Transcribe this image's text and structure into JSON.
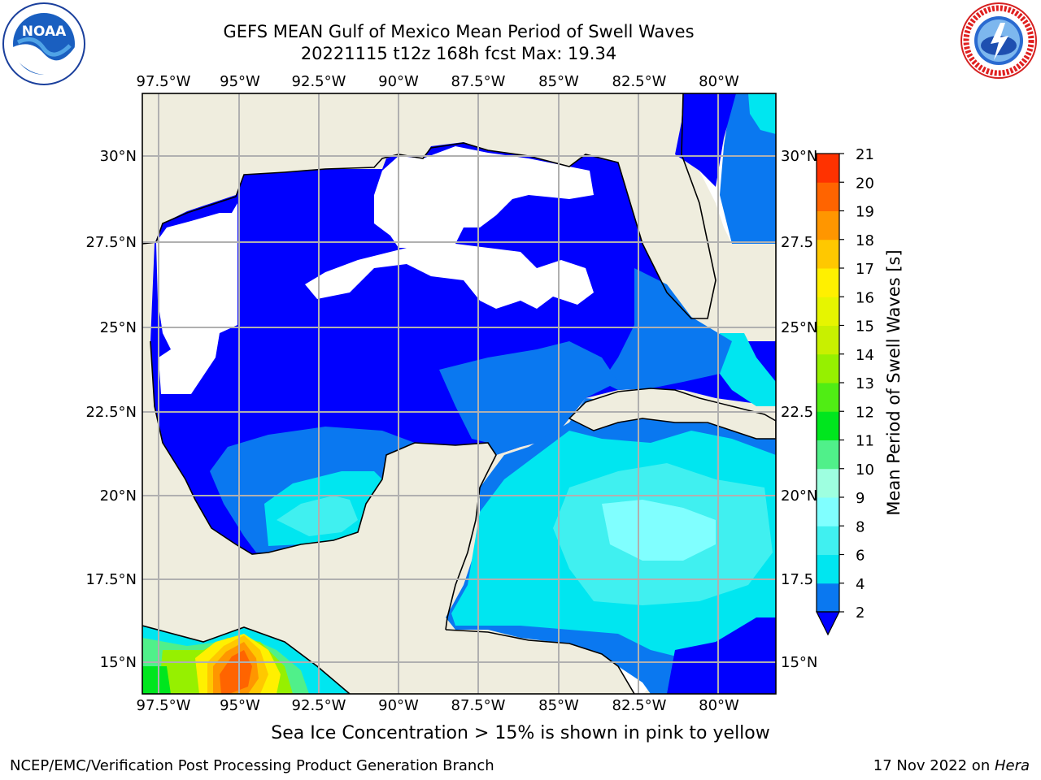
{
  "title_line1": "GEFS MEAN Gulf of Mexico Mean Period of Swell Waves",
  "title_line2": "20221115 t12z 168h fcst   Max: 19.34",
  "lon_labels": [
    "97.5°W",
    "95°W",
    "92.5°W",
    "90°W",
    "87.5°W",
    "85°W",
    "82.5°W",
    "80°W"
  ],
  "lat_labels_left": [
    "30°N",
    "27.5°N",
    "25°N",
    "22.5°N",
    "20°N",
    "17.5°N",
    "15°N"
  ],
  "lat_labels_right": [
    "30°N",
    "27.5",
    "25°N",
    "22.5",
    "20°N",
    "17.5",
    "15°N"
  ],
  "colorbar": {
    "label": "Mean Period of Swell Waves [s]",
    "ticks": [
      "2",
      "4",
      "6",
      "8",
      "9",
      "10",
      "11",
      "12",
      "13",
      "14",
      "15",
      "16",
      "17",
      "18",
      "19",
      "20",
      "21"
    ],
    "colors": [
      "#0a78f0",
      "#00e6f0",
      "#40f0f0",
      "#80ffff",
      "#9effe0",
      "#50f08a",
      "#00e61e",
      "#50ed14",
      "#96f000",
      "#c8f000",
      "#e6f500",
      "#fff000",
      "#ffc800",
      "#ff9600",
      "#ff6400",
      "#ff3200",
      "#ff0000"
    ],
    "under_color": "#0000ff"
  },
  "ice_note": "Sea Ice Concentration > 15% is shown in pink to yellow",
  "footer_left": "NCEP/EMC/Verification Post Processing Product Generation Branch",
  "footer_right_date": "17 Nov 2022 on ",
  "footer_right_machine": "Hera",
  "logos": {
    "noaa": {
      "icon": "noaa-logo-icon",
      "text": "NOAA"
    },
    "nws": {
      "icon": "nws-logo-icon",
      "text": "NATIONAL WEATHER SERVICE"
    }
  },
  "colors": {
    "land": "#efedde",
    "ocean_lt2": "#0000ff",
    "grid": "#b0b0b0"
  }
}
